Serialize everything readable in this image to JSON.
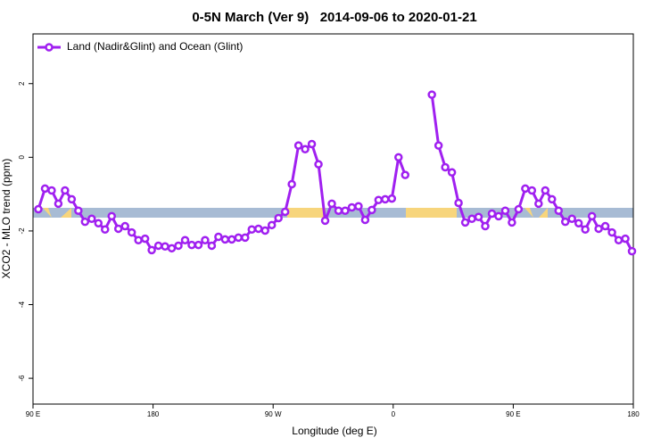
{
  "chart_data": {
    "type": "line",
    "title": "0-5N March (Ver 9)   2014-09-06 to 2020-01-21",
    "xlabel": "Longitude (deg E)",
    "ylabel": "XCO2 - MLO trend (ppm)",
    "xlim": [
      90,
      540
    ],
    "xticks": [
      {
        "value": 90,
        "label": "90 E"
      },
      180,
      {
        "value": 270,
        "label": "90 W"
      },
      {
        "value": 360,
        "label": "0"
      },
      {
        "value": 450,
        "label": "90 E"
      },
      {
        "value": 540,
        "label": "180"
      }
    ],
    "ylim": [
      -6.7,
      3.35
    ],
    "yticks": [
      -6,
      -4,
      -2,
      0,
      2
    ],
    "legend": "top-left",
    "series": [
      {
        "name": "Land (Nadir&Glint) and Ocean (Glint)",
        "color": "#a020f0",
        "x": [
          94,
          99,
          104,
          109,
          114,
          119,
          124,
          129,
          134,
          139,
          144,
          149,
          154,
          159,
          164,
          169,
          174,
          179,
          184,
          189,
          194,
          199,
          204,
          209,
          214,
          219,
          224,
          229,
          234,
          239,
          244,
          249,
          254,
          259,
          264,
          269,
          274,
          279,
          284,
          289,
          294,
          299,
          304,
          309,
          314,
          319,
          324,
          329,
          334,
          339,
          344,
          349,
          354,
          359,
          364,
          369,
          374,
          379,
          384,
          389,
          394,
          399,
          404,
          409,
          414,
          419,
          424,
          429,
          434,
          439,
          444,
          449,
          454,
          459,
          464,
          469,
          474,
          479,
          484,
          489,
          494,
          499,
          504,
          509,
          514,
          519,
          524,
          529,
          534,
          539
        ],
        "values": [
          -1.41,
          -0.85,
          -0.9,
          -1.26,
          -0.9,
          -1.14,
          -1.45,
          -1.75,
          -1.67,
          -1.79,
          -1.96,
          -1.6,
          -1.94,
          -1.87,
          -2.04,
          -2.25,
          -2.21,
          -2.52,
          -2.4,
          -2.42,
          -2.47,
          -2.4,
          -2.25,
          -2.38,
          -2.38,
          -2.25,
          -2.4,
          -2.16,
          -2.23,
          -2.23,
          -2.18,
          -2.18,
          -1.96,
          -1.94,
          -1.99,
          -1.84,
          -1.65,
          -1.48,
          -0.73,
          0.32,
          0.22,
          0.36,
          -0.19,
          -1.72,
          -1.26,
          -1.45,
          -1.45,
          -1.36,
          -1.33,
          -1.7,
          -1.43,
          -1.16,
          -1.14,
          -1.12,
          0,
          -0.48,
          null,
          null,
          null,
          1.7,
          0.32,
          -0.27,
          -0.41,
          -1.24,
          -1.77,
          -1.67,
          -1.62,
          -1.87,
          -1.53,
          -1.6,
          -1.45,
          -1.77,
          -1.41,
          -0.85,
          -0.9,
          -1.26,
          -0.9,
          -1.14,
          -1.45,
          -1.75,
          -1.67,
          -1.79,
          -1.96,
          -1.6,
          -1.94,
          -1.87,
          -2.04,
          -2.25,
          -2.21,
          -2.55
        ]
      }
    ]
  }
}
